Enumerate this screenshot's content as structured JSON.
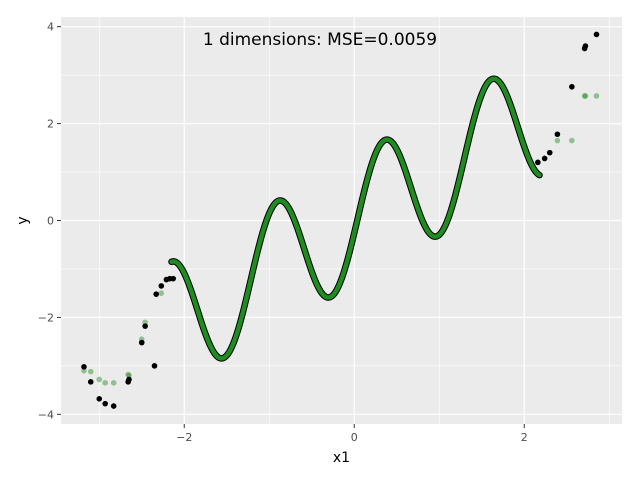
{
  "chart_data": {
    "type": "scatter",
    "title": "1 dimensions: MSE=0.0059",
    "xlabel": "x1",
    "ylabel": "y",
    "xlim": [
      -3.45,
      3.15
    ],
    "ylim": [
      -4.2,
      4.2
    ],
    "xticks": [
      -2,
      0,
      2
    ],
    "xtick_labels": [
      "−2",
      "0",
      "2"
    ],
    "yticks": [
      -4,
      -2,
      0,
      2,
      4
    ],
    "ytick_labels": [
      "−4",
      "−2",
      "0",
      "2",
      "4"
    ],
    "grid": true,
    "legend": "none",
    "colors": {
      "panel": "#EBEBEB",
      "grid_major": "#FFFFFF",
      "actual": "#000000",
      "predicted": "#1E8C1E"
    },
    "series": [
      {
        "role": "actual",
        "points": [
          [
            -3.18,
            -3.02
          ],
          [
            -3.1,
            -3.33
          ],
          [
            -3.0,
            -3.68
          ],
          [
            -2.93,
            -3.78
          ],
          [
            -2.83,
            -3.83
          ],
          [
            -2.66,
            -3.33
          ],
          [
            -2.65,
            -3.28
          ],
          [
            -2.5,
            -2.52
          ],
          [
            -2.46,
            -2.18
          ],
          [
            -2.33,
            -1.52
          ],
          [
            -2.27,
            -1.35
          ],
          [
            -2.21,
            -1.22
          ],
          [
            -2.17,
            -1.2
          ],
          [
            -2.13,
            -1.2
          ],
          [
            -2.35,
            -3.0
          ],
          [
            2.16,
            1.2
          ],
          [
            2.24,
            1.28
          ],
          [
            2.3,
            1.4
          ],
          [
            2.39,
            1.78
          ],
          [
            2.56,
            2.76
          ],
          [
            2.71,
            3.55
          ],
          [
            2.72,
            3.6
          ],
          [
            2.85,
            3.84
          ]
        ]
      },
      {
        "role": "predicted",
        "points": [
          [
            -3.18,
            -3.1
          ],
          [
            -3.1,
            -3.12
          ],
          [
            -3.0,
            -3.28
          ],
          [
            -2.93,
            -3.35
          ],
          [
            -2.83,
            -3.35
          ],
          [
            -2.66,
            -3.18
          ],
          [
            -2.65,
            -3.2
          ],
          [
            -2.5,
            -2.45
          ],
          [
            -2.46,
            -2.1
          ],
          [
            -2.27,
            -1.5
          ],
          [
            2.39,
            1.65
          ],
          [
            2.56,
            1.65
          ],
          [
            2.71,
            2.57
          ],
          [
            2.72,
            2.57
          ],
          [
            2.85,
            2.57
          ]
        ]
      }
    ],
    "curve": {
      "x_range": [
        -2.15,
        2.18
      ],
      "formula": "y = x + 1.3*sin(5*x - 0.2)"
    }
  }
}
